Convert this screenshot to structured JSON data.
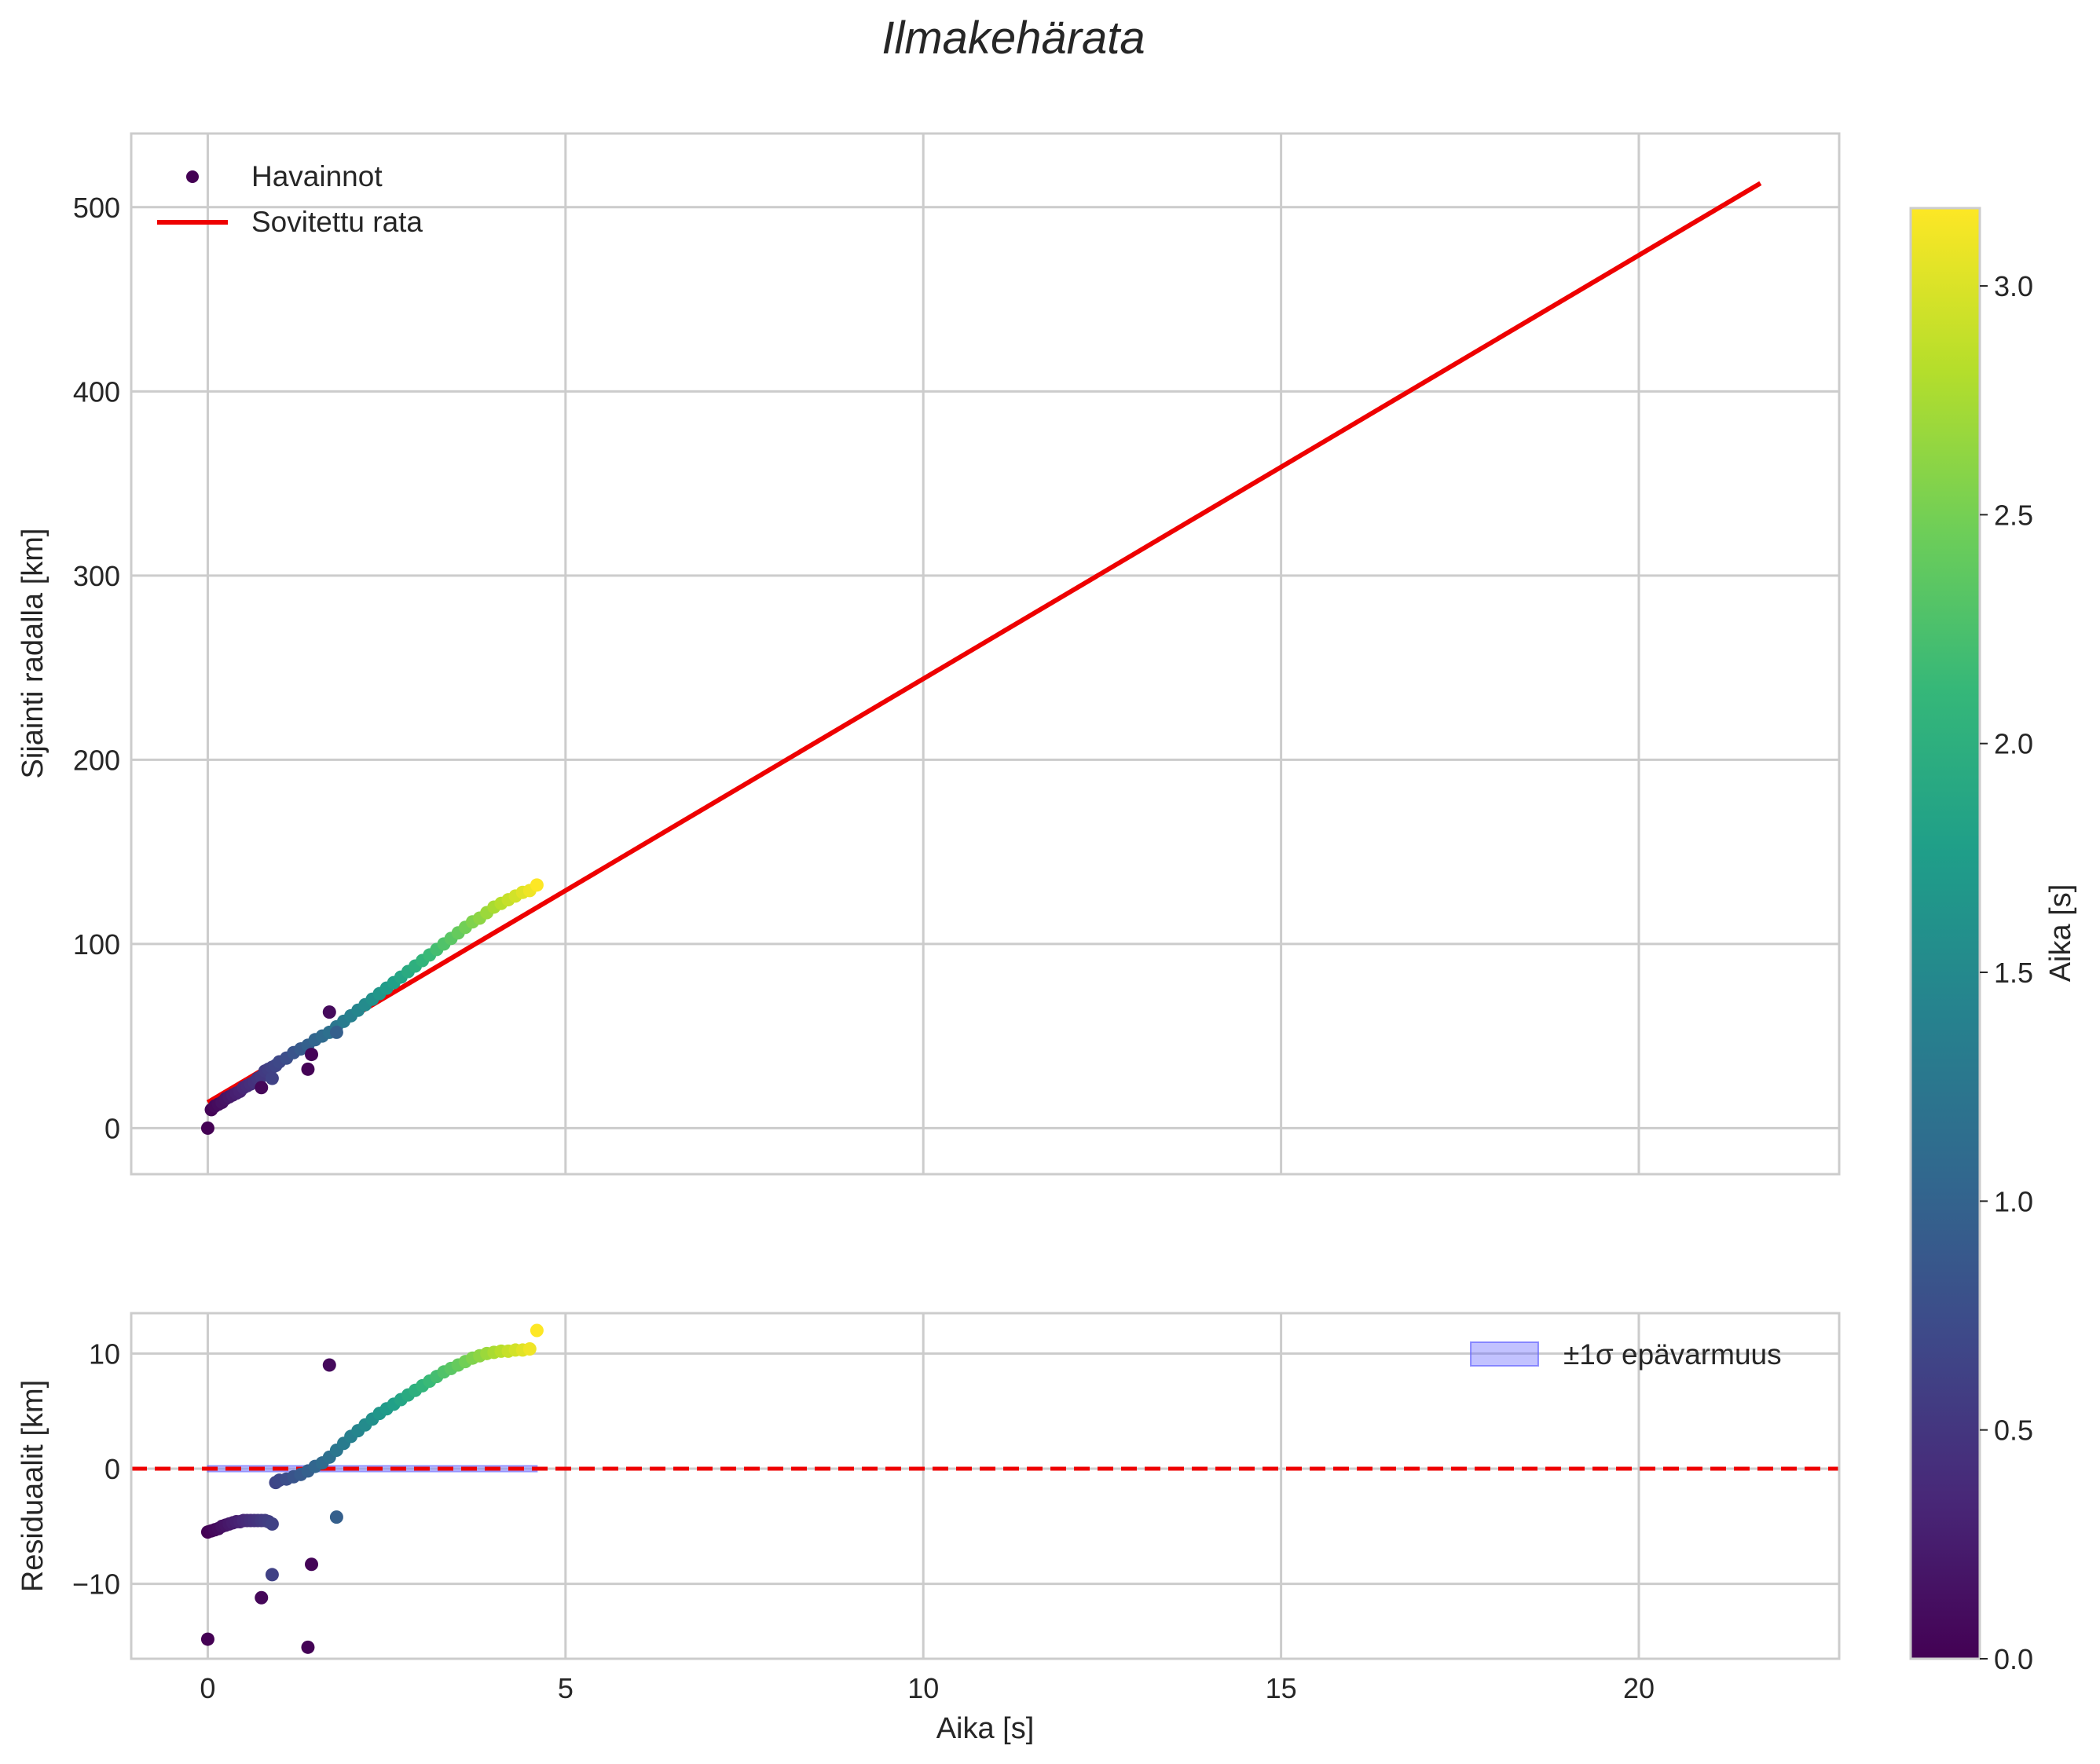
{
  "figure": {
    "title": "Ilmakehärata"
  },
  "colorbar": {
    "label": "Aika [s]",
    "range": [
      0.0,
      3.17
    ],
    "ticks": [
      "0.0",
      "0.5",
      "1.0",
      "1.5",
      "2.0",
      "2.5",
      "3.0"
    ],
    "tick_values": [
      0.0,
      0.5,
      1.0,
      1.5,
      2.0,
      2.5,
      3.0
    ],
    "colormap": "viridis",
    "colormap_stops": [
      "#440154",
      "#482878",
      "#3e4989",
      "#31688e",
      "#26828e",
      "#1f9e89",
      "#35b779",
      "#6ece58",
      "#b5de2b",
      "#fde725"
    ]
  },
  "chart_data": [
    {
      "type": "scatter",
      "name": "trajectory",
      "title": "",
      "xlabel": "",
      "ylabel": "Sijainti radalla [km]",
      "xlim": [
        -1.07,
        22.8
      ],
      "ylim": [
        -25,
        540
      ],
      "grid": true,
      "x_ticks": [
        0,
        5,
        10,
        15,
        20
      ],
      "y_ticks": [
        0,
        100,
        200,
        300,
        400,
        500
      ],
      "y_tick_labels": [
        "0",
        "100",
        "200",
        "300",
        "400",
        "500"
      ],
      "legend_position": "top-left",
      "legend": [
        "Havainnot",
        "Sovitettu rata"
      ],
      "series": [
        {
          "name": "Havainnot",
          "kind": "scatter",
          "color_by": "time",
          "x": [
            0.0,
            0.05,
            0.1,
            0.15,
            0.2,
            0.25,
            0.3,
            0.35,
            0.4,
            0.45,
            0.5,
            0.55,
            0.6,
            0.65,
            0.7,
            0.75,
            0.8,
            0.85,
            0.9,
            0.95,
            1.0,
            1.1,
            1.2,
            1.3,
            1.4,
            1.5,
            1.6,
            1.7,
            1.8,
            1.9,
            2.0,
            2.1,
            2.2,
            2.3,
            2.4,
            2.5,
            2.6,
            2.7,
            2.8,
            2.9,
            3.0,
            3.1,
            3.2,
            3.3,
            3.4,
            3.5,
            3.6,
            3.7,
            3.8,
            3.9,
            4.0,
            4.1,
            4.2,
            4.3,
            4.4,
            4.5,
            4.6,
            0.75,
            0.9,
            1.4,
            1.45,
            1.7,
            1.8
          ],
          "y": [
            0,
            10,
            12,
            13,
            14,
            16,
            17,
            18,
            19,
            20,
            22,
            23,
            24,
            25,
            27,
            28,
            31,
            32,
            33,
            34,
            36,
            38,
            41,
            43,
            45,
            48,
            50,
            52,
            55,
            58,
            61,
            64,
            67,
            70,
            73,
            76,
            79,
            82,
            85,
            88,
            91,
            94,
            97,
            100,
            103,
            106,
            109,
            112,
            114,
            117,
            120,
            122,
            124,
            126,
            128,
            129,
            132,
            22,
            27,
            32,
            40,
            63,
            52
          ],
          "c": [
            0.0,
            0.03,
            0.07,
            0.1,
            0.14,
            0.17,
            0.21,
            0.24,
            0.28,
            0.31,
            0.35,
            0.38,
            0.42,
            0.45,
            0.48,
            0.52,
            0.55,
            0.59,
            0.62,
            0.66,
            0.69,
            0.76,
            0.83,
            0.9,
            0.97,
            1.03,
            1.1,
            1.17,
            1.24,
            1.31,
            1.38,
            1.45,
            1.52,
            1.59,
            1.66,
            1.72,
            1.79,
            1.86,
            1.93,
            2.0,
            2.07,
            2.14,
            2.21,
            2.28,
            2.34,
            2.41,
            2.48,
            2.55,
            2.62,
            2.69,
            2.76,
            2.83,
            2.9,
            2.96,
            3.03,
            3.1,
            3.17,
            0.05,
            0.62,
            0.02,
            0.03,
            0.08,
            0.95
          ]
        },
        {
          "name": "Sovitettu rata",
          "kind": "line",
          "color": "#ee0000",
          "x": [
            0.0,
            21.7
          ],
          "y": [
            14,
            513
          ]
        }
      ]
    },
    {
      "type": "scatter",
      "name": "residuals",
      "title": "",
      "xlabel": "Aika [s]",
      "ylabel": "Residuaalit [km]",
      "xlim": [
        -1.07,
        22.8
      ],
      "ylim": [
        -16.5,
        13.5
      ],
      "grid": true,
      "x_ticks": [
        0,
        5,
        10,
        15,
        20
      ],
      "x_tick_labels": [
        "0",
        "5",
        "10",
        "15",
        "20"
      ],
      "y_ticks": [
        -10,
        0,
        10
      ],
      "y_tick_labels": [
        "−10",
        "0",
        "10"
      ],
      "legend_position": "top-right",
      "legend": [
        "±1σ epävarmuus"
      ],
      "zero_line": {
        "y": 0,
        "color": "#ee0000",
        "style": "dashed"
      },
      "series": [
        {
          "name": "residuals",
          "kind": "scatter",
          "color_by": "time",
          "x": [
            0.0,
            0.05,
            0.1,
            0.15,
            0.2,
            0.25,
            0.3,
            0.35,
            0.4,
            0.45,
            0.5,
            0.55,
            0.6,
            0.65,
            0.7,
            0.75,
            0.8,
            0.85,
            0.9,
            0.95,
            1.0,
            1.1,
            1.2,
            1.3,
            1.4,
            1.5,
            1.6,
            1.7,
            1.8,
            1.9,
            2.0,
            2.1,
            2.2,
            2.3,
            2.4,
            2.5,
            2.6,
            2.7,
            2.8,
            2.9,
            3.0,
            3.1,
            3.2,
            3.3,
            3.4,
            3.5,
            3.6,
            3.7,
            3.8,
            3.9,
            4.0,
            4.1,
            4.2,
            4.3,
            4.4,
            4.5,
            4.6,
            0.0,
            0.75,
            0.9,
            1.4,
            1.45,
            1.7,
            1.8
          ],
          "y": [
            -5.5,
            -5.4,
            -5.3,
            -5.2,
            -5.0,
            -4.9,
            -4.8,
            -4.7,
            -4.6,
            -4.6,
            -4.5,
            -4.5,
            -4.5,
            -4.5,
            -4.5,
            -4.5,
            -4.5,
            -4.6,
            -4.8,
            -1.2,
            -1.0,
            -0.9,
            -0.7,
            -0.5,
            -0.2,
            0.2,
            0.5,
            1.0,
            1.6,
            2.2,
            2.8,
            3.3,
            3.8,
            4.3,
            4.8,
            5.2,
            5.6,
            6.0,
            6.4,
            6.8,
            7.2,
            7.6,
            8.0,
            8.4,
            8.7,
            9.0,
            9.3,
            9.6,
            9.8,
            10.0,
            10.1,
            10.2,
            10.2,
            10.3,
            10.3,
            10.4,
            12.0,
            -14.8,
            -11.2,
            -9.2,
            -15.5,
            -8.3,
            9.0,
            -4.2
          ],
          "c": [
            0.0,
            0.03,
            0.07,
            0.1,
            0.14,
            0.17,
            0.21,
            0.24,
            0.28,
            0.31,
            0.35,
            0.38,
            0.42,
            0.45,
            0.48,
            0.52,
            0.55,
            0.59,
            0.62,
            0.66,
            0.69,
            0.76,
            0.83,
            0.9,
            0.97,
            1.03,
            1.1,
            1.17,
            1.24,
            1.31,
            1.38,
            1.45,
            1.52,
            1.59,
            1.66,
            1.72,
            1.79,
            1.86,
            1.93,
            2.0,
            2.07,
            2.14,
            2.21,
            2.28,
            2.34,
            2.41,
            2.48,
            2.55,
            2.62,
            2.69,
            2.76,
            2.83,
            2.9,
            2.96,
            3.03,
            3.1,
            3.17,
            0.0,
            0.05,
            0.62,
            0.02,
            0.03,
            0.08,
            0.95
          ]
        },
        {
          "name": "±1σ epävarmuus",
          "kind": "band",
          "color": "#6666ff",
          "x": [
            0.0,
            4.6
          ],
          "lower": -0.25,
          "upper": 0.25
        }
      ]
    }
  ]
}
